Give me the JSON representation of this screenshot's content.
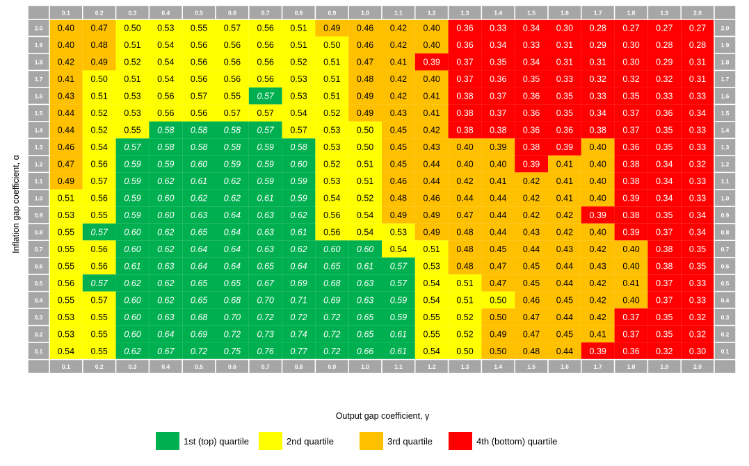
{
  "chart_data": {
    "type": "heatmap",
    "xlabel": "Output gap coefficient, γ",
    "ylabel": "Inflation gap coefficient, α",
    "x": [
      "0.1",
      "0.2",
      "0.3",
      "0.4",
      "0.5",
      "0.6",
      "0.7",
      "0.8",
      "0.9",
      "1.0",
      "1.1",
      "1.2",
      "1.3",
      "1.4",
      "1.5",
      "1.6",
      "1.7",
      "1.8",
      "1.9",
      "2.0"
    ],
    "y": [
      "2.0",
      "1.9",
      "1.8",
      "1.7",
      "1.6",
      "1.5",
      "1.4",
      "1.3",
      "1.2",
      "1.1",
      "1.0",
      "0.9",
      "0.8",
      "0.7",
      "0.6",
      "0.5",
      "0.4",
      "0.3",
      "0.2",
      "0.1"
    ],
    "values": [
      [
        "0.40",
        "0.47",
        "0.50",
        "0.53",
        "0.55",
        "0.57",
        "0.56",
        "0.51",
        "0.49",
        "0.46",
        "0.42",
        "0.40",
        "0.36",
        "0.33",
        "0.34",
        "0.30",
        "0.28",
        "0.27",
        "0.27",
        "0.27"
      ],
      [
        "0.40",
        "0.48",
        "0.51",
        "0.54",
        "0.56",
        "0.56",
        "0.56",
        "0.51",
        "0.50",
        "0.46",
        "0.42",
        "0.40",
        "0.36",
        "0.34",
        "0.33",
        "0.31",
        "0.29",
        "0.30",
        "0.28",
        "0.28"
      ],
      [
        "0.42",
        "0.49",
        "0.52",
        "0.54",
        "0.56",
        "0.56",
        "0.56",
        "0.52",
        "0.51",
        "0.47",
        "0.41",
        "0.39",
        "0.37",
        "0.35",
        "0.34",
        "0.31",
        "0.31",
        "0.30",
        "0.29",
        "0.31"
      ],
      [
        "0.41",
        "0.50",
        "0.51",
        "0.54",
        "0.56",
        "0.56",
        "0.56",
        "0.53",
        "0.51",
        "0.48",
        "0.42",
        "0.40",
        "0.37",
        "0.36",
        "0.35",
        "0.33",
        "0.32",
        "0.32",
        "0.32",
        "0.31"
      ],
      [
        "0.43",
        "0.51",
        "0.53",
        "0.56",
        "0.57",
        "0.55",
        "0.57",
        "0.53",
        "0.51",
        "0.49",
        "0.42",
        "0.41",
        "0.38",
        "0.37",
        "0.36",
        "0.35",
        "0.33",
        "0.35",
        "0.33",
        "0.33"
      ],
      [
        "0.44",
        "0.52",
        "0.53",
        "0.56",
        "0.56",
        "0.57",
        "0.57",
        "0.54",
        "0.52",
        "0.49",
        "0.43",
        "0.41",
        "0.38",
        "0.37",
        "0.36",
        "0.35",
        "0.34",
        "0.37",
        "0.36",
        "0.34"
      ],
      [
        "0.44",
        "0.52",
        "0.55",
        "0.58",
        "0.58",
        "0.58",
        "0.57",
        "0.57",
        "0.53",
        "0.50",
        "0.45",
        "0.42",
        "0.38",
        "0.38",
        "0.36",
        "0.36",
        "0.38",
        "0.37",
        "0.35",
        "0.33"
      ],
      [
        "0.46",
        "0.54",
        "0.57",
        "0.58",
        "0.58",
        "0.58",
        "0.59",
        "0.58",
        "0.53",
        "0.50",
        "0.45",
        "0.43",
        "0.40",
        "0.39",
        "0.38",
        "0.39",
        "0.40",
        "0.36",
        "0.35",
        "0.33"
      ],
      [
        "0.47",
        "0.56",
        "0.59",
        "0.59",
        "0.60",
        "0.59",
        "0.59",
        "0.60",
        "0.52",
        "0.51",
        "0.45",
        "0.44",
        "0.40",
        "0.40",
        "0.39",
        "0.41",
        "0.40",
        "0.38",
        "0.34",
        "0.32"
      ],
      [
        "0.49",
        "0.57",
        "0.59",
        "0.62",
        "0.61",
        "0.62",
        "0.59",
        "0.59",
        "0.53",
        "0.51",
        "0.46",
        "0.44",
        "0.42",
        "0.41",
        "0.42",
        "0.41",
        "0.40",
        "0.38",
        "0.34",
        "0.33"
      ],
      [
        "0.51",
        "0.56",
        "0.59",
        "0.60",
        "0.62",
        "0.62",
        "0.61",
        "0.59",
        "0.54",
        "0.52",
        "0.48",
        "0.46",
        "0.44",
        "0.44",
        "0.42",
        "0.41",
        "0.40",
        "0.39",
        "0.34",
        "0.33"
      ],
      [
        "0.53",
        "0.55",
        "0.59",
        "0.60",
        "0.63",
        "0.64",
        "0.63",
        "0.62",
        "0.56",
        "0.54",
        "0.49",
        "0.49",
        "0.47",
        "0.44",
        "0.42",
        "0.42",
        "0.39",
        "0.38",
        "0.35",
        "0.34"
      ],
      [
        "0.55",
        "0.57",
        "0.60",
        "0.62",
        "0.65",
        "0.64",
        "0.63",
        "0.61",
        "0.56",
        "0.54",
        "0.53",
        "0.49",
        "0.48",
        "0.44",
        "0.43",
        "0.42",
        "0.40",
        "0.39",
        "0.37",
        "0.34"
      ],
      [
        "0.55",
        "0.56",
        "0.60",
        "0.62",
        "0.64",
        "0.64",
        "0.63",
        "0.62",
        "0.60",
        "0.60",
        "0.54",
        "0.51",
        "0.48",
        "0.45",
        "0.44",
        "0.43",
        "0.42",
        "0.40",
        "0.38",
        "0.35"
      ],
      [
        "0.55",
        "0.56",
        "0.61",
        "0.63",
        "0.64",
        "0.64",
        "0.65",
        "0.64",
        "0.65",
        "0.61",
        "0.57",
        "0.53",
        "0.48",
        "0.47",
        "0.45",
        "0.44",
        "0.43",
        "0.40",
        "0.38",
        "0.35"
      ],
      [
        "0.56",
        "0.57",
        "0.62",
        "0.62",
        "0.65",
        "0.65",
        "0.67",
        "0.69",
        "0.68",
        "0.63",
        "0.57",
        "0.54",
        "0.51",
        "0.47",
        "0.45",
        "0.44",
        "0.42",
        "0.41",
        "0.37",
        "0.33"
      ],
      [
        "0.55",
        "0.57",
        "0.60",
        "0.62",
        "0.65",
        "0.68",
        "0.70",
        "0.71",
        "0.69",
        "0.63",
        "0.59",
        "0.54",
        "0.51",
        "0.50",
        "0.46",
        "0.45",
        "0.42",
        "0.40",
        "0.37",
        "0.33"
      ],
      [
        "0.53",
        "0.55",
        "0.60",
        "0.63",
        "0.68",
        "0.70",
        "0.72",
        "0.72",
        "0.72",
        "0.65",
        "0.59",
        "0.55",
        "0.52",
        "0.50",
        "0.47",
        "0.44",
        "0.42",
        "0.37",
        "0.35",
        "0.32"
      ],
      [
        "0.53",
        "0.55",
        "0.60",
        "0.64",
        "0.69",
        "0.72",
        "0.73",
        "0.74",
        "0.72",
        "0.65",
        "0.61",
        "0.55",
        "0.52",
        "0.49",
        "0.47",
        "0.45",
        "0.41",
        "0.37",
        "0.35",
        "0.32"
      ],
      [
        "0.54",
        "0.55",
        "0.62",
        "0.67",
        "0.72",
        "0.75",
        "0.76",
        "0.77",
        "0.72",
        "0.66",
        "0.61",
        "0.54",
        "0.50",
        "0.50",
        "0.48",
        "0.44",
        "0.39",
        "0.36",
        "0.32",
        "0.30"
      ]
    ],
    "quartile": [
      [
        3,
        3,
        2,
        2,
        2,
        2,
        2,
        2,
        3,
        3,
        3,
        3,
        4,
        4,
        4,
        4,
        4,
        4,
        4,
        4
      ],
      [
        3,
        3,
        2,
        2,
        2,
        2,
        2,
        2,
        2,
        3,
        3,
        3,
        4,
        4,
        4,
        4,
        4,
        4,
        4,
        4
      ],
      [
        3,
        3,
        2,
        2,
        2,
        2,
        2,
        2,
        2,
        3,
        3,
        4,
        4,
        4,
        4,
        4,
        4,
        4,
        4,
        4
      ],
      [
        3,
        2,
        2,
        2,
        2,
        2,
        2,
        2,
        2,
        3,
        3,
        3,
        4,
        4,
        4,
        4,
        4,
        4,
        4,
        4
      ],
      [
        3,
        2,
        2,
        2,
        2,
        2,
        1,
        2,
        2,
        3,
        3,
        3,
        4,
        4,
        4,
        4,
        4,
        4,
        4,
        4
      ],
      [
        3,
        2,
        2,
        2,
        2,
        2,
        2,
        2,
        2,
        3,
        3,
        3,
        4,
        4,
        4,
        4,
        4,
        4,
        4,
        4
      ],
      [
        3,
        2,
        2,
        1,
        1,
        1,
        1,
        2,
        2,
        2,
        3,
        3,
        4,
        4,
        4,
        4,
        4,
        4,
        4,
        4
      ],
      [
        3,
        2,
        1,
        1,
        1,
        1,
        1,
        1,
        2,
        2,
        3,
        3,
        3,
        3,
        4,
        4,
        3,
        4,
        4,
        4
      ],
      [
        3,
        2,
        1,
        1,
        1,
        1,
        1,
        1,
        2,
        2,
        3,
        3,
        3,
        3,
        4,
        3,
        3,
        4,
        4,
        4
      ],
      [
        3,
        2,
        1,
        1,
        1,
        1,
        1,
        1,
        2,
        2,
        3,
        3,
        3,
        3,
        3,
        3,
        3,
        4,
        4,
        4
      ],
      [
        2,
        2,
        1,
        1,
        1,
        1,
        1,
        1,
        2,
        2,
        3,
        3,
        3,
        3,
        3,
        3,
        3,
        4,
        4,
        4
      ],
      [
        2,
        2,
        1,
        1,
        1,
        1,
        1,
        1,
        2,
        2,
        3,
        3,
        3,
        3,
        3,
        3,
        4,
        4,
        4,
        4
      ],
      [
        2,
        1,
        1,
        1,
        1,
        1,
        1,
        1,
        2,
        2,
        2,
        3,
        3,
        3,
        3,
        3,
        3,
        4,
        4,
        4
      ],
      [
        2,
        2,
        1,
        1,
        1,
        1,
        1,
        1,
        1,
        1,
        2,
        2,
        3,
        3,
        3,
        3,
        3,
        3,
        4,
        4
      ],
      [
        2,
        2,
        1,
        1,
        1,
        1,
        1,
        1,
        1,
        1,
        1,
        2,
        3,
        3,
        3,
        3,
        3,
        3,
        4,
        4
      ],
      [
        2,
        1,
        1,
        1,
        1,
        1,
        1,
        1,
        1,
        1,
        1,
        2,
        2,
        3,
        3,
        3,
        3,
        3,
        4,
        4
      ],
      [
        2,
        2,
        1,
        1,
        1,
        1,
        1,
        1,
        1,
        1,
        1,
        2,
        2,
        2,
        3,
        3,
        3,
        3,
        4,
        4
      ],
      [
        2,
        2,
        1,
        1,
        1,
        1,
        1,
        1,
        1,
        1,
        1,
        2,
        2,
        3,
        3,
        3,
        3,
        4,
        4,
        4
      ],
      [
        2,
        2,
        1,
        1,
        1,
        1,
        1,
        1,
        1,
        1,
        1,
        2,
        2,
        3,
        3,
        3,
        3,
        4,
        4,
        4
      ],
      [
        2,
        2,
        1,
        1,
        1,
        1,
        1,
        1,
        1,
        1,
        1,
        2,
        2,
        3,
        3,
        3,
        4,
        4,
        4,
        4
      ]
    ],
    "legend": [
      {
        "name": "1st (top) quartile",
        "color": "#00b050"
      },
      {
        "name": "2nd quartile",
        "color": "#ffff00"
      },
      {
        "name": "3rd quartile",
        "color": "#ffc000"
      },
      {
        "name": "4th (bottom) quartile",
        "color": "#ff0000"
      }
    ],
    "legend_position": "bottom-center",
    "header_color": "#a6a6a6"
  }
}
